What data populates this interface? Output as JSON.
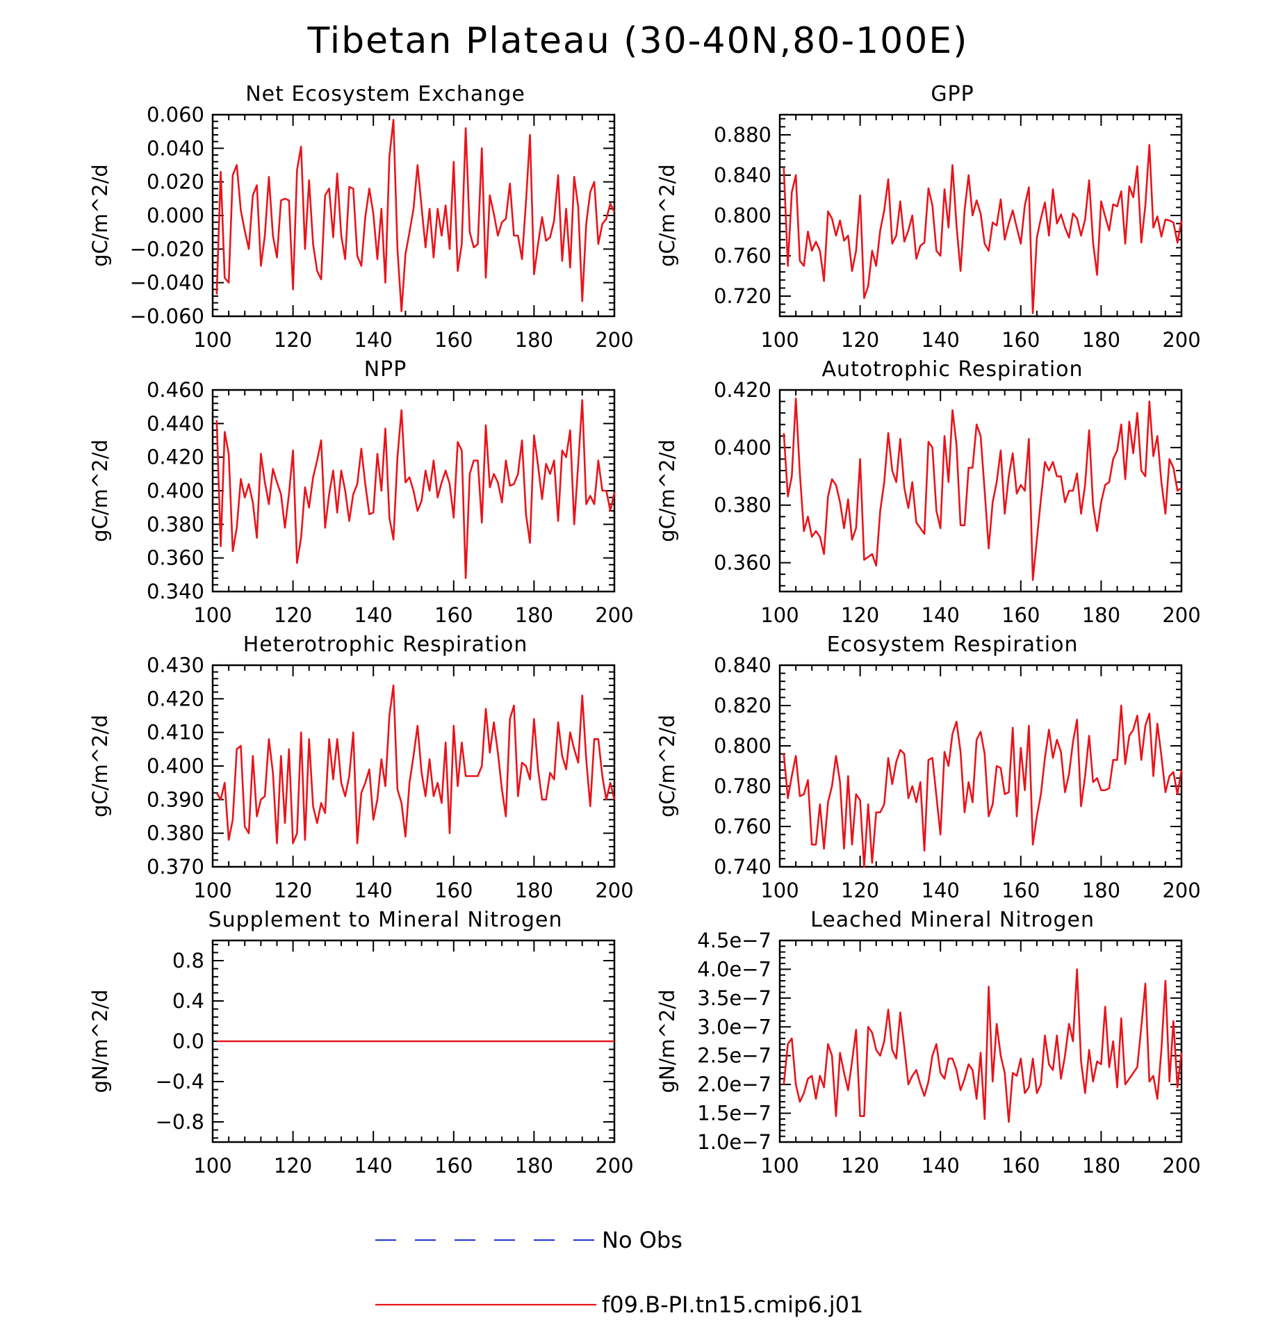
{
  "title": "Tibetan Plateau (30-40N,80-100E)",
  "legend": {
    "entries": [
      {
        "label": "No Obs",
        "color": "#2b3fd6",
        "style": "dashed"
      },
      {
        "label": "f09.B-PI.tn15.cmip6.j01",
        "color": "#e8141b",
        "style": "solid"
      }
    ]
  },
  "series_color": "#e8141b",
  "chart_data": [
    {
      "type": "line",
      "title": "Net Ecosystem Exchange",
      "ylabel": "gC/m^2/d",
      "xlim": [
        100,
        200
      ],
      "ylim": [
        -0.06,
        0.06
      ],
      "xticks": [
        100,
        120,
        140,
        160,
        180,
        200
      ],
      "xtick_labels": [
        "100",
        "120",
        "140",
        "160",
        "180",
        "200"
      ],
      "yticks": [
        -0.06,
        -0.04,
        -0.02,
        0.0,
        0.02,
        0.04,
        0.06
      ],
      "ytick_labels": [
        "−0.060",
        "−0.040",
        "−0.020",
        "0.000",
        "0.020",
        "0.040",
        "0.060"
      ],
      "x_start": 101,
      "values": [
        -0.047,
        0.026,
        -0.037,
        -0.04,
        0.024,
        0.03,
        0.003,
        -0.009,
        -0.02,
        0.012,
        0.018,
        -0.03,
        -0.012,
        0.023,
        -0.012,
        -0.025,
        0.009,
        0.01,
        0.009,
        -0.044,
        0.027,
        0.041,
        -0.02,
        0.021,
        -0.017,
        -0.033,
        -0.038,
        0.012,
        0.016,
        -0.013,
        0.025,
        -0.012,
        -0.026,
        0.017,
        0.016,
        -0.024,
        -0.03,
        -0.001,
        0.016,
        0.001,
        -0.026,
        0.004,
        -0.04,
        0.035,
        0.057,
        -0.02,
        -0.057,
        -0.023,
        -0.01,
        0.004,
        0.03,
        0.005,
        -0.019,
        0.004,
        -0.025,
        0.004,
        -0.012,
        0.006,
        -0.02,
        0.032,
        -0.033,
        -0.017,
        0.052,
        -0.01,
        -0.019,
        -0.017,
        0.04,
        -0.037,
        0.012,
        0.001,
        -0.012,
        -0.004,
        -0.002,
        0.019,
        -0.012,
        -0.012,
        -0.026,
        0.008,
        0.048,
        -0.035,
        -0.017,
        -0.001,
        -0.015,
        -0.013,
        -0.003,
        0.024,
        -0.027,
        0.004,
        -0.031,
        0.023,
        0.005,
        -0.051,
        -0.005,
        0.014,
        0.02,
        -0.017,
        -0.005,
        -0.002,
        0.007,
        0.002
      ]
    },
    {
      "type": "line",
      "title": "GPP",
      "ylabel": "gC/m^2/d",
      "xlim": [
        100,
        200
      ],
      "ylim": [
        0.7,
        0.9
      ],
      "xticks": [
        100,
        120,
        140,
        160,
        180,
        200
      ],
      "xtick_labels": [
        "100",
        "120",
        "140",
        "160",
        "180",
        "200"
      ],
      "yticks": [
        0.72,
        0.76,
        0.8,
        0.84,
        0.88
      ],
      "ytick_labels": [
        "0.720",
        "0.760",
        "0.800",
        "0.840",
        "0.880"
      ],
      "x_start": 101,
      "values": [
        0.847,
        0.75,
        0.823,
        0.84,
        0.755,
        0.75,
        0.784,
        0.765,
        0.774,
        0.765,
        0.735,
        0.804,
        0.797,
        0.78,
        0.795,
        0.775,
        0.78,
        0.745,
        0.765,
        0.82,
        0.718,
        0.73,
        0.765,
        0.75,
        0.785,
        0.805,
        0.836,
        0.772,
        0.78,
        0.814,
        0.774,
        0.785,
        0.8,
        0.757,
        0.77,
        0.773,
        0.827,
        0.81,
        0.765,
        0.76,
        0.826,
        0.788,
        0.85,
        0.79,
        0.745,
        0.805,
        0.84,
        0.8,
        0.815,
        0.802,
        0.772,
        0.765,
        0.793,
        0.79,
        0.816,
        0.776,
        0.792,
        0.805,
        0.788,
        0.772,
        0.81,
        0.828,
        0.703,
        0.778,
        0.797,
        0.813,
        0.78,
        0.826,
        0.792,
        0.801,
        0.788,
        0.778,
        0.802,
        0.797,
        0.78,
        0.796,
        0.835,
        0.773,
        0.741,
        0.814,
        0.799,
        0.785,
        0.811,
        0.809,
        0.824,
        0.772,
        0.829,
        0.818,
        0.849,
        0.773,
        0.81,
        0.87,
        0.788,
        0.799,
        0.779,
        0.796,
        0.795,
        0.793,
        0.773,
        0.795
      ]
    },
    {
      "type": "line",
      "title": "NPP",
      "ylabel": "gC/m^2/d",
      "xlim": [
        100,
        200
      ],
      "ylim": [
        0.34,
        0.46
      ],
      "xticks": [
        100,
        120,
        140,
        160,
        180,
        200
      ],
      "xtick_labels": [
        "100",
        "120",
        "140",
        "160",
        "180",
        "200"
      ],
      "yticks": [
        0.34,
        0.36,
        0.38,
        0.4,
        0.42,
        0.44,
        0.46
      ],
      "ytick_labels": [
        "0.340",
        "0.360",
        "0.380",
        "0.400",
        "0.420",
        "0.440",
        "0.460"
      ],
      "x_start": 101,
      "values": [
        0.442,
        0.367,
        0.435,
        0.422,
        0.364,
        0.378,
        0.407,
        0.396,
        0.404,
        0.393,
        0.372,
        0.422,
        0.405,
        0.392,
        0.413,
        0.405,
        0.398,
        0.378,
        0.398,
        0.424,
        0.357,
        0.372,
        0.402,
        0.39,
        0.408,
        0.418,
        0.43,
        0.378,
        0.398,
        0.412,
        0.387,
        0.412,
        0.4,
        0.382,
        0.398,
        0.404,
        0.425,
        0.404,
        0.386,
        0.387,
        0.422,
        0.4,
        0.437,
        0.384,
        0.371,
        0.42,
        0.448,
        0.405,
        0.408,
        0.4,
        0.388,
        0.394,
        0.412,
        0.4,
        0.418,
        0.396,
        0.405,
        0.412,
        0.404,
        0.384,
        0.429,
        0.424,
        0.348,
        0.41,
        0.418,
        0.418,
        0.381,
        0.439,
        0.402,
        0.41,
        0.405,
        0.393,
        0.418,
        0.403,
        0.404,
        0.41,
        0.43,
        0.386,
        0.369,
        0.433,
        0.415,
        0.395,
        0.416,
        0.41,
        0.418,
        0.382,
        0.424,
        0.42,
        0.436,
        0.38,
        0.416,
        0.454,
        0.392,
        0.397,
        0.392,
        0.418,
        0.4,
        0.4,
        0.388,
        0.399
      ]
    },
    {
      "type": "line",
      "title": "Autotrophic Respiration",
      "ylabel": "gC/m^2/d",
      "xlim": [
        100,
        200
      ],
      "ylim": [
        0.35,
        0.42
      ],
      "xticks": [
        100,
        120,
        140,
        160,
        180,
        200
      ],
      "xtick_labels": [
        "100",
        "120",
        "140",
        "160",
        "180",
        "200"
      ],
      "yticks": [
        0.36,
        0.38,
        0.4,
        0.42
      ],
      "ytick_labels": [
        "0.360",
        "0.380",
        "0.400",
        "0.420"
      ],
      "x_start": 101,
      "values": [
        0.405,
        0.383,
        0.39,
        0.417,
        0.391,
        0.371,
        0.376,
        0.369,
        0.371,
        0.369,
        0.363,
        0.383,
        0.389,
        0.387,
        0.381,
        0.372,
        0.382,
        0.368,
        0.372,
        0.396,
        0.361,
        0.362,
        0.363,
        0.359,
        0.378,
        0.388,
        0.405,
        0.392,
        0.388,
        0.403,
        0.386,
        0.379,
        0.388,
        0.374,
        0.372,
        0.37,
        0.402,
        0.4,
        0.378,
        0.372,
        0.404,
        0.388,
        0.413,
        0.401,
        0.373,
        0.373,
        0.393,
        0.393,
        0.408,
        0.404,
        0.385,
        0.365,
        0.381,
        0.388,
        0.399,
        0.377,
        0.39,
        0.398,
        0.384,
        0.387,
        0.385,
        0.403,
        0.354,
        0.368,
        0.382,
        0.395,
        0.392,
        0.395,
        0.39,
        0.39,
        0.381,
        0.385,
        0.385,
        0.391,
        0.377,
        0.387,
        0.406,
        0.38,
        0.371,
        0.381,
        0.387,
        0.388,
        0.396,
        0.399,
        0.408,
        0.389,
        0.409,
        0.398,
        0.412,
        0.392,
        0.39,
        0.416,
        0.397,
        0.404,
        0.388,
        0.377,
        0.396,
        0.393,
        0.385,
        0.386
      ]
    },
    {
      "type": "line",
      "title": "Heterotrophic Respiration",
      "ylabel": "gC/m^2/d",
      "xlim": [
        100,
        200
      ],
      "ylim": [
        0.37,
        0.43
      ],
      "xticks": [
        100,
        120,
        140,
        160,
        180,
        200
      ],
      "xtick_labels": [
        "100",
        "120",
        "140",
        "160",
        "180",
        "200"
      ],
      "yticks": [
        0.37,
        0.38,
        0.39,
        0.4,
        0.41,
        0.42,
        0.43
      ],
      "ytick_labels": [
        "0.370",
        "0.380",
        "0.390",
        "0.400",
        "0.410",
        "0.420",
        "0.430"
      ],
      "x_start": 101,
      "values": [
        0.392,
        0.39,
        0.395,
        0.378,
        0.384,
        0.405,
        0.406,
        0.382,
        0.38,
        0.403,
        0.385,
        0.39,
        0.391,
        0.408,
        0.398,
        0.377,
        0.403,
        0.383,
        0.405,
        0.377,
        0.38,
        0.41,
        0.378,
        0.408,
        0.388,
        0.383,
        0.389,
        0.386,
        0.408,
        0.396,
        0.408,
        0.395,
        0.391,
        0.397,
        0.41,
        0.377,
        0.392,
        0.395,
        0.399,
        0.384,
        0.39,
        0.402,
        0.394,
        0.415,
        0.424,
        0.393,
        0.389,
        0.379,
        0.395,
        0.403,
        0.412,
        0.398,
        0.391,
        0.402,
        0.391,
        0.395,
        0.389,
        0.407,
        0.38,
        0.412,
        0.394,
        0.407,
        0.397,
        0.397,
        0.397,
        0.397,
        0.4,
        0.417,
        0.404,
        0.413,
        0.404,
        0.393,
        0.385,
        0.414,
        0.418,
        0.391,
        0.401,
        0.4,
        0.396,
        0.414,
        0.399,
        0.39,
        0.39,
        0.398,
        0.396,
        0.413,
        0.403,
        0.399,
        0.41,
        0.405,
        0.401,
        0.421,
        0.402,
        0.388,
        0.408,
        0.408,
        0.397,
        0.39,
        0.395,
        0.39
      ]
    },
    {
      "type": "line",
      "title": "Ecosystem Respiration",
      "ylabel": "gC/m^2/d",
      "xlim": [
        100,
        200
      ],
      "ylim": [
        0.74,
        0.84
      ],
      "xticks": [
        100,
        120,
        140,
        160,
        180,
        200
      ],
      "xtick_labels": [
        "100",
        "120",
        "140",
        "160",
        "180",
        "200"
      ],
      "yticks": [
        0.74,
        0.76,
        0.78,
        0.8,
        0.82,
        0.84
      ],
      "ytick_labels": [
        "0.740",
        "0.760",
        "0.780",
        "0.800",
        "0.820",
        "0.840"
      ],
      "x_start": 101,
      "values": [
        0.796,
        0.774,
        0.785,
        0.795,
        0.775,
        0.776,
        0.783,
        0.751,
        0.751,
        0.771,
        0.749,
        0.772,
        0.78,
        0.795,
        0.782,
        0.749,
        0.785,
        0.751,
        0.776,
        0.773,
        0.74,
        0.771,
        0.742,
        0.767,
        0.767,
        0.771,
        0.794,
        0.781,
        0.792,
        0.798,
        0.796,
        0.774,
        0.78,
        0.772,
        0.782,
        0.748,
        0.793,
        0.794,
        0.775,
        0.756,
        0.797,
        0.79,
        0.806,
        0.812,
        0.797,
        0.767,
        0.782,
        0.772,
        0.803,
        0.807,
        0.796,
        0.765,
        0.771,
        0.79,
        0.789,
        0.776,
        0.777,
        0.809,
        0.765,
        0.799,
        0.778,
        0.81,
        0.751,
        0.765,
        0.776,
        0.794,
        0.808,
        0.794,
        0.803,
        0.797,
        0.777,
        0.786,
        0.802,
        0.813,
        0.77,
        0.785,
        0.805,
        0.782,
        0.784,
        0.778,
        0.778,
        0.779,
        0.793,
        0.793,
        0.82,
        0.791,
        0.805,
        0.808,
        0.815,
        0.793,
        0.81,
        0.816,
        0.785,
        0.811,
        0.795,
        0.777,
        0.785,
        0.787,
        0.776,
        0.788
      ]
    },
    {
      "type": "line",
      "title": "Supplement to Mineral Nitrogen",
      "ylabel": "gN/m^2/d",
      "xlim": [
        100,
        200
      ],
      "ylim": [
        -1.0,
        1.0
      ],
      "xticks": [
        100,
        120,
        140,
        160,
        180,
        200
      ],
      "xtick_labels": [
        "100",
        "120",
        "140",
        "160",
        "180",
        "200"
      ],
      "yticks": [
        -0.8,
        -0.4,
        0.0,
        0.4,
        0.8
      ],
      "ytick_labels": [
        "−0.8",
        "−0.4",
        "0.0",
        "0.4",
        "0.8"
      ],
      "x_start": 101,
      "values": [
        0,
        0,
        0,
        0,
        0,
        0,
        0,
        0,
        0,
        0,
        0,
        0,
        0,
        0,
        0,
        0,
        0,
        0,
        0,
        0,
        0,
        0,
        0,
        0,
        0,
        0,
        0,
        0,
        0,
        0,
        0,
        0,
        0,
        0,
        0,
        0,
        0,
        0,
        0,
        0,
        0,
        0,
        0,
        0,
        0,
        0,
        0,
        0,
        0,
        0,
        0,
        0,
        0,
        0,
        0,
        0,
        0,
        0,
        0,
        0,
        0,
        0,
        0,
        0,
        0,
        0,
        0,
        0,
        0,
        0,
        0,
        0,
        0,
        0,
        0,
        0,
        0,
        0,
        0,
        0,
        0,
        0,
        0,
        0,
        0,
        0,
        0,
        0,
        0,
        0,
        0,
        0,
        0,
        0,
        0,
        0,
        0,
        0,
        0,
        0
      ]
    },
    {
      "type": "line",
      "title": "Leached Mineral Nitrogen",
      "ylabel": "gN/m^2/d",
      "xlim": [
        100,
        200
      ],
      "ylim": [
        1e-07,
        4.5e-07
      ],
      "xticks": [
        100,
        120,
        140,
        160,
        180,
        200
      ],
      "xtick_labels": [
        "100",
        "120",
        "140",
        "160",
        "180",
        "200"
      ],
      "yticks": [
        1e-07,
        1.5e-07,
        2e-07,
        2.5e-07,
        3e-07,
        3.5e-07,
        4e-07,
        4.5e-07
      ],
      "ytick_labels": [
        "1.0e−7",
        "1.5e−7",
        "2.0e−7",
        "2.5e−7",
        "3.0e−7",
        "3.5e−7",
        "4.0e−7",
        "4.5e−7"
      ],
      "x_start": 101,
      "values": [
        2e-07,
        2.7e-07,
        2.8e-07,
        2e-07,
        1.7e-07,
        1.85e-07,
        2.1e-07,
        2.15e-07,
        1.75e-07,
        2.15e-07,
        1.95e-07,
        2.7e-07,
        2.5e-07,
        1.45e-07,
        2.55e-07,
        2.2e-07,
        1.9e-07,
        2.4e-07,
        2.95e-07,
        1.45e-07,
        1.45e-07,
        3e-07,
        2.9e-07,
        2.6e-07,
        2.5e-07,
        2.75e-07,
        3.3e-07,
        2.6e-07,
        2.45e-07,
        3.25e-07,
        2.65e-07,
        2e-07,
        2.15e-07,
        2.25e-07,
        2e-07,
        1.8e-07,
        2.05e-07,
        2.5e-07,
        2.7e-07,
        2.2e-07,
        2.1e-07,
        2.45e-07,
        2.45e-07,
        2.25e-07,
        1.9e-07,
        2.1e-07,
        2.35e-07,
        2.25e-07,
        1.75e-07,
        2.55e-07,
        1.4e-07,
        3.7e-07,
        2.05e-07,
        3.05e-07,
        2.5e-07,
        2.2e-07,
        1.35e-07,
        2.2e-07,
        2.15e-07,
        2.45e-07,
        1.85e-07,
        1.95e-07,
        2.45e-07,
        1.85e-07,
        2e-07,
        2.85e-07,
        2.35e-07,
        2.25e-07,
        2.85e-07,
        2.1e-07,
        2.5e-07,
        3.05e-07,
        2.75e-07,
        4e-07,
        2.4e-07,
        1.85e-07,
        2.6e-07,
        2.05e-07,
        2.4e-07,
        2.35e-07,
        3.35e-07,
        2.3e-07,
        2.75e-07,
        1.95e-07,
        3.15e-07,
        2e-07,
        2.1e-07,
        2.2e-07,
        2.3e-07,
        3e-07,
        3.75e-07,
        2.05e-07,
        2.15e-07,
        1.75e-07,
        2.6e-07,
        3.8e-07,
        2.05e-07,
        3.1e-07,
        1.95e-07,
        2.55e-07
      ]
    }
  ]
}
